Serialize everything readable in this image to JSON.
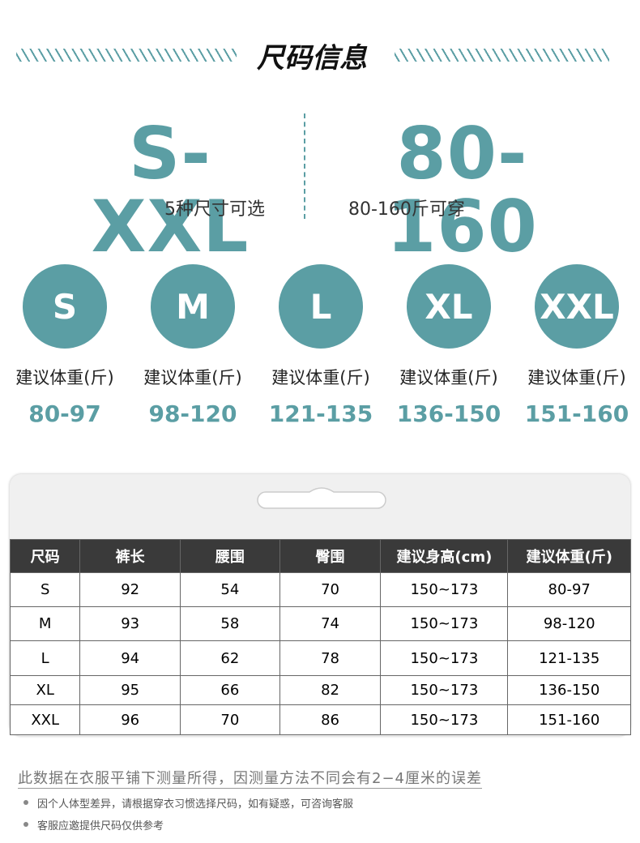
{
  "header": {
    "title": "尺码信息"
  },
  "summary": {
    "left": {
      "big": "S-XXL",
      "sub": "5种尺寸可选"
    },
    "right": {
      "big": "80-160",
      "sub": "80-160斤可穿"
    }
  },
  "sizes": [
    {
      "label": "S",
      "caption": "建议体重(斤)",
      "range": "80-97"
    },
    {
      "label": "M",
      "caption": "建议体重(斤)",
      "range": "98-120"
    },
    {
      "label": "L",
      "caption": "建议体重(斤)",
      "range": "121-135"
    },
    {
      "label": "XL",
      "caption": "建议体重(斤)",
      "range": "136-150"
    },
    {
      "label": "XXL",
      "caption": "建议体重(斤)",
      "range": "151-160"
    }
  ],
  "table": {
    "headers": [
      "尺码",
      "裤长",
      "腰围",
      "臀围",
      "建议身高(cm)",
      "建议体重(斤)"
    ],
    "rows": [
      [
        "S",
        92,
        54,
        70,
        "150~173",
        "80-97"
      ],
      [
        "M",
        93,
        58,
        74,
        "150~173",
        "98-120"
      ],
      [
        "L",
        94,
        62,
        78,
        "150~173",
        "121-135"
      ],
      [
        "XL",
        95,
        66,
        82,
        "150~173",
        "136-150"
      ],
      [
        "XXL",
        96,
        70,
        86,
        "150~173",
        "151-160"
      ]
    ]
  },
  "notes": {
    "main": "此数据在衣服平铺下测量所得，因测量方法不同会有2−4厘米的误差",
    "bullets": [
      "因个人体型差异，请根据穿衣习惯选择尺码，如有疑惑，可咨询客服",
      "客服应邀提供尺码仅供参考"
    ]
  }
}
